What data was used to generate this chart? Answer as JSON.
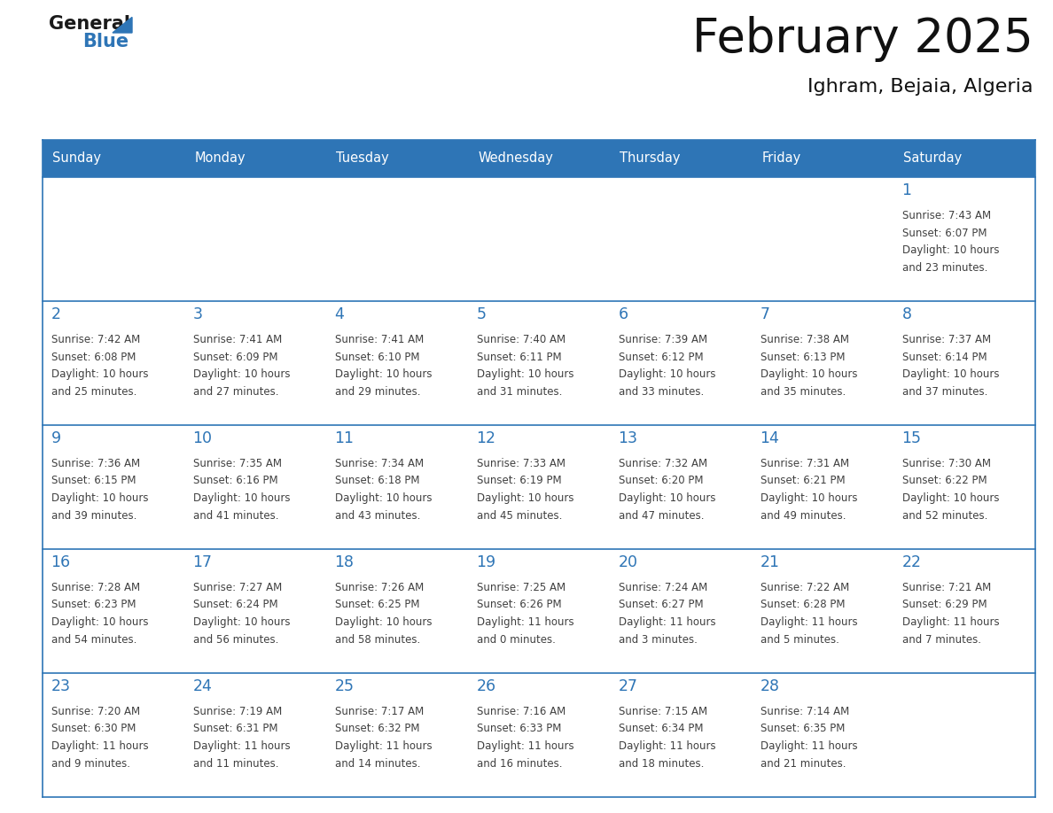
{
  "title": "February 2025",
  "subtitle": "Ighram, Bejaia, Algeria",
  "days_of_week": [
    "Sunday",
    "Monday",
    "Tuesday",
    "Wednesday",
    "Thursday",
    "Friday",
    "Saturday"
  ],
  "header_bg": "#2e75b6",
  "header_text": "#ffffff",
  "divider_color": "#2e75b6",
  "day_num_color": "#2e75b6",
  "text_color": "#404040",
  "calendar_data": [
    [
      null,
      null,
      null,
      null,
      null,
      null,
      {
        "day": 1,
        "sunrise": "7:43 AM",
        "sunset": "6:07 PM",
        "daylight": "10 hours",
        "daylight2": "and 23 minutes."
      }
    ],
    [
      {
        "day": 2,
        "sunrise": "7:42 AM",
        "sunset": "6:08 PM",
        "daylight": "10 hours",
        "daylight2": "and 25 minutes."
      },
      {
        "day": 3,
        "sunrise": "7:41 AM",
        "sunset": "6:09 PM",
        "daylight": "10 hours",
        "daylight2": "and 27 minutes."
      },
      {
        "day": 4,
        "sunrise": "7:41 AM",
        "sunset": "6:10 PM",
        "daylight": "10 hours",
        "daylight2": "and 29 minutes."
      },
      {
        "day": 5,
        "sunrise": "7:40 AM",
        "sunset": "6:11 PM",
        "daylight": "10 hours",
        "daylight2": "and 31 minutes."
      },
      {
        "day": 6,
        "sunrise": "7:39 AM",
        "sunset": "6:12 PM",
        "daylight": "10 hours",
        "daylight2": "and 33 minutes."
      },
      {
        "day": 7,
        "sunrise": "7:38 AM",
        "sunset": "6:13 PM",
        "daylight": "10 hours",
        "daylight2": "and 35 minutes."
      },
      {
        "day": 8,
        "sunrise": "7:37 AM",
        "sunset": "6:14 PM",
        "daylight": "10 hours",
        "daylight2": "and 37 minutes."
      }
    ],
    [
      {
        "day": 9,
        "sunrise": "7:36 AM",
        "sunset": "6:15 PM",
        "daylight": "10 hours",
        "daylight2": "and 39 minutes."
      },
      {
        "day": 10,
        "sunrise": "7:35 AM",
        "sunset": "6:16 PM",
        "daylight": "10 hours",
        "daylight2": "and 41 minutes."
      },
      {
        "day": 11,
        "sunrise": "7:34 AM",
        "sunset": "6:18 PM",
        "daylight": "10 hours",
        "daylight2": "and 43 minutes."
      },
      {
        "day": 12,
        "sunrise": "7:33 AM",
        "sunset": "6:19 PM",
        "daylight": "10 hours",
        "daylight2": "and 45 minutes."
      },
      {
        "day": 13,
        "sunrise": "7:32 AM",
        "sunset": "6:20 PM",
        "daylight": "10 hours",
        "daylight2": "and 47 minutes."
      },
      {
        "day": 14,
        "sunrise": "7:31 AM",
        "sunset": "6:21 PM",
        "daylight": "10 hours",
        "daylight2": "and 49 minutes."
      },
      {
        "day": 15,
        "sunrise": "7:30 AM",
        "sunset": "6:22 PM",
        "daylight": "10 hours",
        "daylight2": "and 52 minutes."
      }
    ],
    [
      {
        "day": 16,
        "sunrise": "7:28 AM",
        "sunset": "6:23 PM",
        "daylight": "10 hours",
        "daylight2": "and 54 minutes."
      },
      {
        "day": 17,
        "sunrise": "7:27 AM",
        "sunset": "6:24 PM",
        "daylight": "10 hours",
        "daylight2": "and 56 minutes."
      },
      {
        "day": 18,
        "sunrise": "7:26 AM",
        "sunset": "6:25 PM",
        "daylight": "10 hours",
        "daylight2": "and 58 minutes."
      },
      {
        "day": 19,
        "sunrise": "7:25 AM",
        "sunset": "6:26 PM",
        "daylight": "11 hours",
        "daylight2": "and 0 minutes."
      },
      {
        "day": 20,
        "sunrise": "7:24 AM",
        "sunset": "6:27 PM",
        "daylight": "11 hours",
        "daylight2": "and 3 minutes."
      },
      {
        "day": 21,
        "sunrise": "7:22 AM",
        "sunset": "6:28 PM",
        "daylight": "11 hours",
        "daylight2": "and 5 minutes."
      },
      {
        "day": 22,
        "sunrise": "7:21 AM",
        "sunset": "6:29 PM",
        "daylight": "11 hours",
        "daylight2": "and 7 minutes."
      }
    ],
    [
      {
        "day": 23,
        "sunrise": "7:20 AM",
        "sunset": "6:30 PM",
        "daylight": "11 hours",
        "daylight2": "and 9 minutes."
      },
      {
        "day": 24,
        "sunrise": "7:19 AM",
        "sunset": "6:31 PM",
        "daylight": "11 hours",
        "daylight2": "and 11 minutes."
      },
      {
        "day": 25,
        "sunrise": "7:17 AM",
        "sunset": "6:32 PM",
        "daylight": "11 hours",
        "daylight2": "and 14 minutes."
      },
      {
        "day": 26,
        "sunrise": "7:16 AM",
        "sunset": "6:33 PM",
        "daylight": "11 hours",
        "daylight2": "and 16 minutes."
      },
      {
        "day": 27,
        "sunrise": "7:15 AM",
        "sunset": "6:34 PM",
        "daylight": "11 hours",
        "daylight2": "and 18 minutes."
      },
      {
        "day": 28,
        "sunrise": "7:14 AM",
        "sunset": "6:35 PM",
        "daylight": "11 hours",
        "daylight2": "and 21 minutes."
      },
      null
    ]
  ]
}
